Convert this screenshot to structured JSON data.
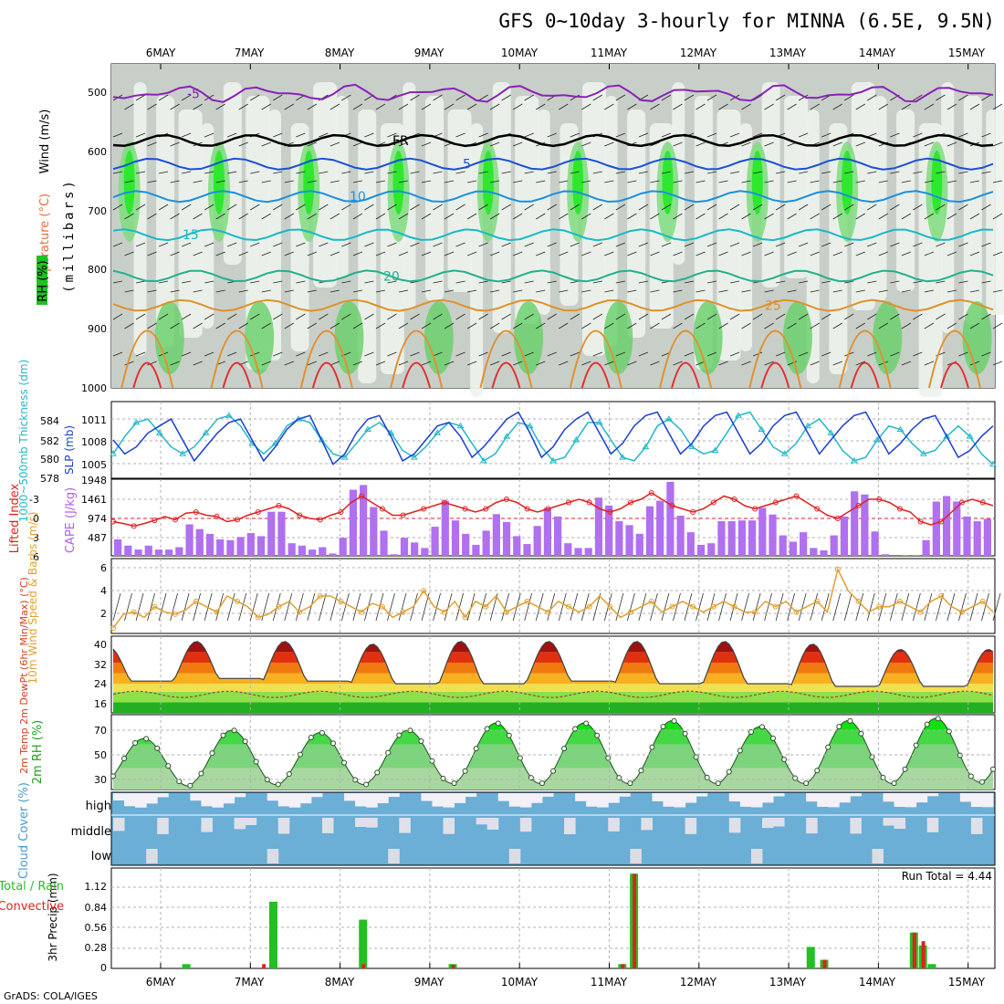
{
  "title": "GFS 0~10day 3-hourly for MINNA (6.5E, 9.5N)",
  "days": [
    "6MAY",
    "7MAY",
    "8MAY",
    "9MAY",
    "10MAY",
    "11MAY",
    "12MAY",
    "13MAY",
    "14MAY",
    "15MAY"
  ],
  "footer": "GrADS: COLA/IGES",
  "colors": {
    "grid": "#a0a0a0",
    "cyan": "#22b8c8",
    "blue": "#1a3fd0",
    "red": "#e02020",
    "purple": "#b060f0",
    "orange": "#e0a030",
    "green": "#22c022",
    "cloud": "#6baed6",
    "cloudClear": "#f3f0f7"
  },
  "chart_data": [
    {
      "type": "heatmap",
      "name": "cross-section",
      "ylabel": "(millibars)",
      "legend_labels": {
        "wind": "Wind (m/s)",
        "temp": "Temperature (°C)",
        "rh": "RH (%)"
      },
      "y_ticks": [
        500,
        600,
        700,
        800,
        900,
        1000
      ],
      "ylim": [
        450,
        1000
      ],
      "temperature_contours": [
        {
          "label": "-5",
          "level_mb": 500
        },
        {
          "label": "FR",
          "level_mb": 580
        },
        {
          "label": "5",
          "level_mb": 620
        },
        {
          "label": "10",
          "level_mb": 675
        },
        {
          "label": "15",
          "level_mb": 740
        },
        {
          "label": "20",
          "level_mb": 810
        },
        {
          "label": "25",
          "level_mb": 860
        }
      ]
    },
    {
      "type": "line",
      "name": "thickness-slp",
      "ylabel_left": "1000~500mb Thickness (dm)",
      "ylabel_right": "SLP (mb)",
      "left_ticks": [
        "584",
        "582",
        "580",
        "578"
      ],
      "right_ticks": [
        "1011",
        "1008",
        "1005"
      ],
      "slp_range": [
        1002.5,
        1013.5
      ],
      "slp": [
        1008,
        1006,
        1007,
        1009,
        1010,
        1011,
        1008,
        1005,
        1007,
        1009,
        1010.5,
        1011,
        1008,
        1005,
        1007,
        1009.5,
        1011,
        1011.5,
        1008,
        1004.5,
        1006,
        1009,
        1011,
        1011.5,
        1008.5,
        1005,
        1006,
        1008,
        1010,
        1010.5,
        1008.5,
        1005.5,
        1007,
        1009,
        1011,
        1012,
        1009,
        1005.5,
        1007,
        1009.5,
        1011,
        1012,
        1009,
        1006,
        1007.5,
        1010,
        1011.5,
        1012,
        1009,
        1006,
        1007.5,
        1010,
        1011.5,
        1012,
        1009,
        1006,
        1007.5,
        1010,
        1011.5,
        1012,
        1009,
        1006,
        1008,
        1010,
        1011.5,
        1012,
        1009,
        1006,
        1007.5,
        1009.5,
        1011,
        1011.5,
        1008.5,
        1005.5,
        1006.5,
        1008.5,
        1010
      ],
      "thickness": [
        1006,
        1008.5,
        1010.5,
        1011,
        1009,
        1007,
        1006,
        1007,
        1009,
        1011,
        1011.5,
        1010,
        1007.5,
        1006,
        1007.5,
        1010,
        1011,
        1010.5,
        1008,
        1006,
        1005.5,
        1007.5,
        1009.5,
        1010.5,
        1009,
        1006.5,
        1005.5,
        1007,
        1009,
        1010.5,
        1010,
        1007.5,
        1005,
        1006,
        1008.5,
        1010.5,
        1010,
        1007,
        1005,
        1005.5,
        1008,
        1010.5,
        1010.5,
        1008,
        1005.5,
        1005,
        1007,
        1010,
        1011,
        1009.5,
        1007,
        1006,
        1006.5,
        1009,
        1011.5,
        1012,
        1009.5,
        1007,
        1006,
        1007.5,
        1010,
        1011,
        1009,
        1006.5,
        1005,
        1005.5,
        1008,
        1010,
        1009.5,
        1007.5,
        1006,
        1006.5,
        1008.5,
        1010,
        1008.5,
        1006,
        1004.5
      ]
    },
    {
      "type": "bar",
      "name": "cape-li",
      "ylabel_left": "Lifted Index",
      "ylabel_right": "CAPE (J/kg)",
      "left_ticks": [
        "-3",
        "0",
        "3",
        "6"
      ],
      "right_ticks": [
        "1948",
        "1461",
        "974",
        "487"
      ],
      "cape": [
        420,
        260,
        160,
        260,
        160,
        160,
        220,
        800,
        680,
        560,
        420,
        400,
        480,
        580,
        500,
        1120,
        1120,
        320,
        260,
        160,
        220,
        60,
        460,
        1680,
        1800,
        1240,
        640,
        40,
        460,
        340,
        200,
        740,
        1400,
        900,
        560,
        280,
        640,
        1060,
        860,
        500,
        300,
        760,
        1220,
        1000,
        320,
        200,
        200,
        1480,
        1280,
        880,
        780,
        560,
        1260,
        1400,
        1880,
        1020,
        600,
        280,
        320,
        880,
        880,
        900,
        900,
        1220,
        1050,
        520,
        360,
        600,
        200,
        140,
        520,
        1000,
        1640,
        1560,
        620,
        40,
        0,
        20,
        20,
        400,
        1380,
        1520,
        1380,
        1000,
        880,
        940
      ],
      "li": [
        0.5,
        0.8,
        1.2,
        0.8,
        0.3,
        -0.3,
        0.2,
        -0.8,
        -1.0,
        -0.5,
        -0.3,
        0.5,
        0.2,
        -0.5,
        -1.0,
        -1.5,
        -2.0,
        -1.5,
        -0.5,
        0.0,
        0.2,
        -0.5,
        -1.0,
        -2.5,
        -3.5,
        -2.5,
        -1.5,
        -0.5,
        -0.5,
        -1.0,
        -1.5,
        -2.0,
        -2.5,
        -2.0,
        -1.5,
        -1.0,
        -1.5,
        -2.5,
        -3.0,
        -2.5,
        -1.5,
        -1.0,
        -1.5,
        -2.0,
        -2.5,
        -3.0,
        -2.5,
        -1.5,
        -1.0,
        -1.5,
        -2.5,
        -3.0,
        -4.0,
        -3.0,
        -2.0,
        -1.5,
        -1.0,
        -1.5,
        -2.5,
        -3.5,
        -3.0,
        -2.0,
        -1.5,
        -2.0,
        -2.5,
        -3.0,
        -3.5,
        -2.5,
        -1.5,
        -0.5,
        0.0,
        -1.0,
        -2.0,
        -3.0,
        -3.0,
        -2.5,
        -1.5,
        -1.0,
        0.5,
        1.0,
        0.5,
        -1.0,
        -2.5,
        -3.0,
        -2.5,
        -2.0
      ]
    },
    {
      "type": "line",
      "name": "wind10m",
      "ylabel": "10m Wind Speed & Barbs (m/s)",
      "y_ticks": [
        2,
        4,
        6
      ],
      "ylim": [
        0,
        7
      ],
      "values": [
        0.5,
        1.8,
        2.0,
        1.5,
        2.5,
        2.0,
        1.8,
        2.2,
        3.0,
        2.5,
        2.0,
        3.5,
        3.0,
        2.5,
        1.5,
        1.8,
        2.5,
        3.0,
        2.0,
        2.5,
        3.5,
        3.5,
        3.0,
        2.5,
        2.0,
        2.8,
        2.5,
        1.5,
        2.0,
        2.5,
        4.0,
        2.5,
        2.0,
        3.0,
        1.5,
        3.0,
        2.5,
        3.5,
        2.0,
        2.5,
        3.0,
        2.5,
        2.0,
        3.0,
        2.5,
        2.0,
        2.5,
        3.5,
        2.5,
        1.5,
        2.0,
        2.5,
        3.0,
        2.0,
        2.5,
        3.0,
        2.5,
        2.0,
        2.5,
        3.0,
        2.5,
        2.0,
        2.0,
        3.0,
        2.5,
        3.0,
        2.0,
        2.5,
        3.0,
        2.0,
        6.0,
        4.0,
        3.0,
        2.0,
        2.5,
        2.5,
        3.0,
        2.5,
        2.0,
        3.0,
        3.5,
        2.5,
        2.0,
        2.5,
        3.0,
        2.0
      ]
    },
    {
      "type": "area",
      "name": "temp-dewpt",
      "ylabel": "2m Temp 2m DewPt (6hr Min/Max) (°C)",
      "y_ticks": [
        16,
        24,
        32,
        40
      ],
      "ylim": [
        13,
        42
      ],
      "daily_min": [
        25,
        26,
        25,
        24,
        24,
        25,
        24,
        24,
        23,
        23
      ],
      "daily_max": [
        38,
        40,
        40,
        39,
        40,
        40,
        40,
        40,
        39,
        37
      ],
      "dewpoint": 20
    },
    {
      "type": "area",
      "name": "rh2m",
      "ylabel": "2m RH (%)",
      "y_ticks": [
        30,
        50,
        70
      ],
      "ylim": [
        22,
        85
      ],
      "daily_min": [
        25,
        26,
        26,
        27,
        27,
        27,
        27,
        27,
        27,
        28
      ],
      "daily_max": [
        65,
        72,
        70,
        72,
        78,
        78,
        80,
        75,
        80,
        82
      ]
    },
    {
      "type": "heatmap",
      "name": "cloud-cover",
      "ylabel": "Cloud Cover (%)",
      "levels": [
        "high",
        "middle",
        "low"
      ]
    },
    {
      "type": "bar",
      "name": "precip",
      "ylabel": "3hr Precip (mm)",
      "legend": [
        "Total / Rain",
        "Convective"
      ],
      "y_ticks": [
        0,
        0.28,
        0.56,
        0.84,
        1.12
      ],
      "ylim": [
        0,
        1.4
      ],
      "run_total_label": "Run Total = 4.44",
      "bars": [
        {
          "day": 0.74,
          "total": 0.06,
          "conv": 0.0
        },
        {
          "day": 1.6,
          "total": 0.0,
          "conv": 0.06
        },
        {
          "day": 1.71,
          "total": 0.93,
          "conv": 0.0
        },
        {
          "day": 2.71,
          "total": 0.68,
          "conv": 0.06
        },
        {
          "day": 3.71,
          "total": 0.06,
          "conv": 0.05
        },
        {
          "day": 5.6,
          "total": 0.06,
          "conv": 0.06
        },
        {
          "day": 5.73,
          "total": 1.32,
          "conv": 1.32
        },
        {
          "day": 7.7,
          "total": 0.3,
          "conv": 0.0
        },
        {
          "day": 7.85,
          "total": 0.12,
          "conv": 0.12
        },
        {
          "day": 8.85,
          "total": 0.5,
          "conv": 0.5
        },
        {
          "day": 8.95,
          "total": 0.32,
          "conv": 0.38
        },
        {
          "day": 9.05,
          "total": 0.06,
          "conv": 0.0
        }
      ]
    }
  ]
}
